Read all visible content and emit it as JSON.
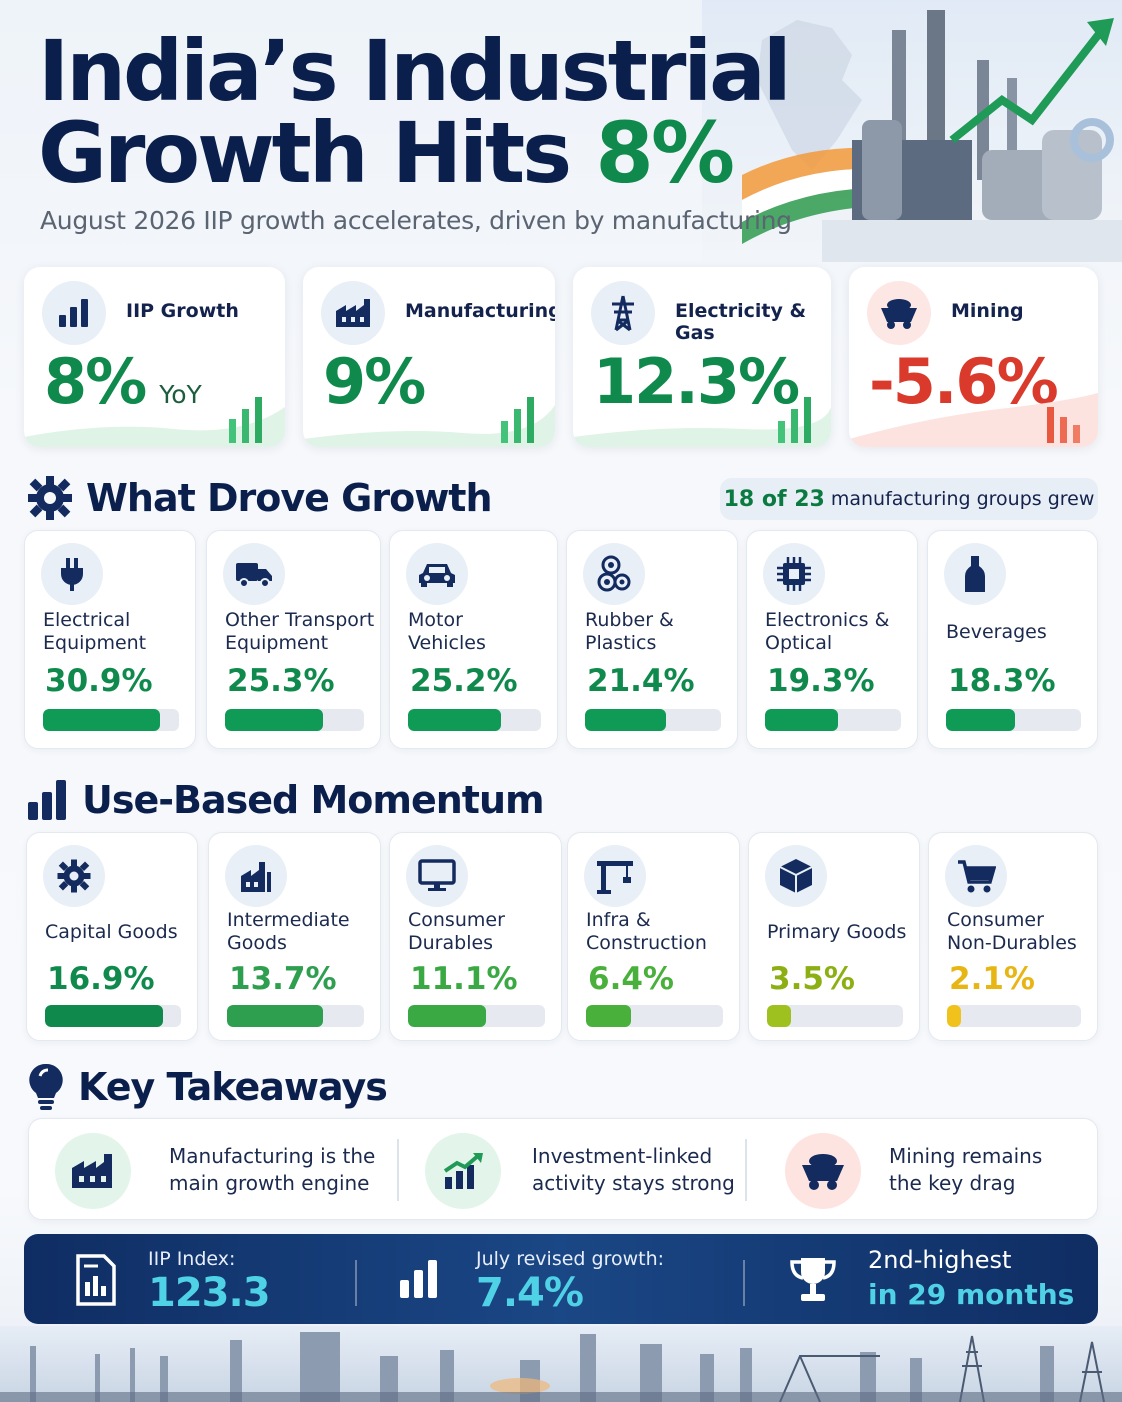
{
  "header": {
    "title_line1": "India’s Industrial",
    "title_line2_prefix": "Growth Hits ",
    "title_accent": "8%",
    "subtitle": "August 2026 IIP growth accelerates, driven by manufacturing"
  },
  "kpis": [
    {
      "label": "IIP Growth",
      "value": "8%",
      "suffix": "YoY",
      "icon": "bar-chart-icon",
      "color": "#0f8a4c"
    },
    {
      "label": "Manufacturing",
      "value": "9%",
      "suffix": "",
      "icon": "factory-icon",
      "color": "#0f8a4c"
    },
    {
      "label": "Electricity & Gas",
      "value": "12.3%",
      "suffix": "",
      "icon": "power-tower-icon",
      "color": "#0f8a4c"
    },
    {
      "label": "Mining",
      "value": "-5.6%",
      "suffix": "",
      "icon": "mine-cart-icon",
      "color": "#d93a2b"
    }
  ],
  "drove_growth": {
    "title": "What Drove Growth",
    "pill_bold": "18 of 23",
    "pill_rest": "manufacturing groups grew",
    "items": [
      {
        "name_line1": "Electrical",
        "name_line2": "Equipment",
        "value": "30.9%",
        "pct": 30.9,
        "icon": "plug-icon"
      },
      {
        "name_line1": "Other Transport",
        "name_line2": "Equipment",
        "value": "25.3%",
        "pct": 25.3,
        "icon": "truck-icon"
      },
      {
        "name_line1": "Motor",
        "name_line2": "Vehicles",
        "value": "25.2%",
        "pct": 25.2,
        "icon": "car-icon"
      },
      {
        "name_line1": "Rubber &",
        "name_line2": "Plastics",
        "value": "21.4%",
        "pct": 21.4,
        "icon": "pellets-icon"
      },
      {
        "name_line1": "Electronics &",
        "name_line2": "Optical",
        "value": "19.3%",
        "pct": 19.3,
        "icon": "chip-icon"
      },
      {
        "name_line1": "Beverages",
        "name_line2": "",
        "value": "18.3%",
        "pct": 18.3,
        "icon": "bottle-icon"
      }
    ]
  },
  "use_based": {
    "title": "Use-Based Momentum",
    "items": [
      {
        "name_line1": "Capital Goods",
        "name_line2": "",
        "value": "16.9%",
        "pct": 16.9,
        "color": "#0f8a4c",
        "icon": "gear-icon"
      },
      {
        "name_line1": "Intermediate",
        "name_line2": "Goods",
        "value": "13.7%",
        "pct": 13.7,
        "color": "#2e9e4f",
        "icon": "factory-icon"
      },
      {
        "name_line1": "Consumer",
        "name_line2": "Durables",
        "value": "11.1%",
        "pct": 11.1,
        "color": "#3aa843",
        "icon": "monitor-icon"
      },
      {
        "name_line1": "Infra &",
        "name_line2": "Construction",
        "value": "6.4%",
        "pct": 6.4,
        "color": "#49b03b",
        "icon": "crane-icon"
      },
      {
        "name_line1": "Primary Goods",
        "name_line2": "",
        "value": "3.5%",
        "pct": 3.5,
        "color": "#9fc11f",
        "icon": "cube-icon"
      },
      {
        "name_line1": "Consumer",
        "name_line2": "Non-Durables",
        "value": "2.1%",
        "pct": 2.1,
        "color": "#f2c21c",
        "icon": "cart-icon"
      }
    ]
  },
  "takeaways": {
    "title": "Key Takeaways",
    "items": [
      {
        "line1": "Manufacturing is the",
        "line2": "main growth engine",
        "icon": "factory-icon"
      },
      {
        "line1": "Investment-linked",
        "line2": "activity stays strong",
        "icon": "trend-up-icon"
      },
      {
        "line1": "Mining remains",
        "line2": "the key drag",
        "icon": "mine-cart-icon"
      }
    ]
  },
  "banner": {
    "index_label": "IIP Index:",
    "index_value": "123.3",
    "revised_label": "July revised growth:",
    "revised_value": "7.4%",
    "rank_line1": "2nd-highest",
    "rank_line2": "in 29 months"
  }
}
